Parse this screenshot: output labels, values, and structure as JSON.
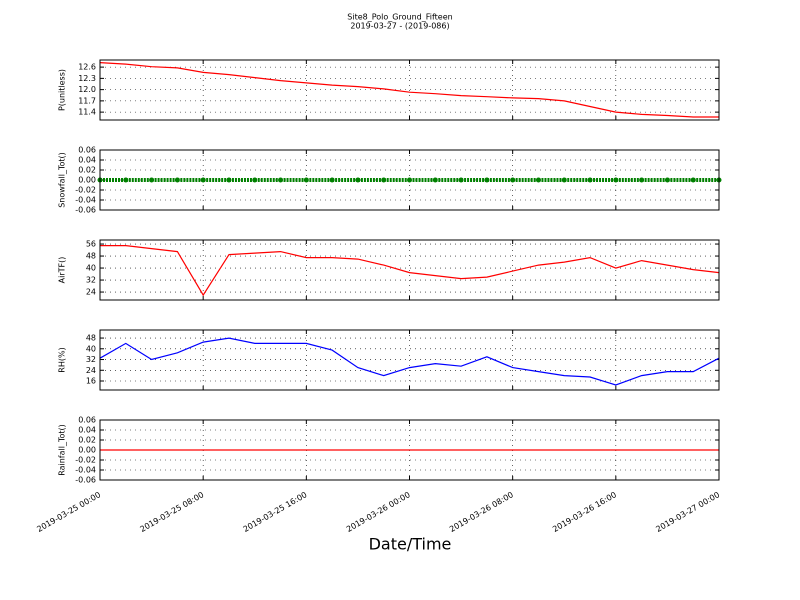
{
  "title": "Site8_Polo_Ground_Fifteen",
  "subtitle": "2019-03-27 - (2019-086)",
  "xlabel": "Date/Time",
  "xaxis": {
    "xlim": [
      "2019-03-25 00:00",
      "2019-03-27 00:00"
    ],
    "xticks": [
      "2019-03-25 00:00",
      "2019-03-25 08:00",
      "2019-03-25 16:00",
      "2019-03-26 00:00",
      "2019-03-26 08:00",
      "2019-03-26 16:00",
      "2019-03-27 00:00"
    ]
  },
  "chart_data": [
    {
      "type": "line",
      "ylabel": "P(unitless)",
      "ylim": [
        11.19,
        12.79
      ],
      "yticks": [
        11.4,
        11.7,
        {
          "value": 12,
          "label": "12.0"
        },
        12.3,
        12.6
      ],
      "grid": true,
      "x": [
        "2019-03-25 00:00",
        "2019-03-25 02:00",
        "2019-03-25 04:00",
        "2019-03-25 06:00",
        "2019-03-25 08:00",
        "2019-03-25 10:00",
        "2019-03-25 12:00",
        "2019-03-25 14:00",
        "2019-03-25 16:00",
        "2019-03-25 18:00",
        "2019-03-25 20:00",
        "2019-03-25 22:00",
        "2019-03-26 00:00",
        "2019-03-26 02:00",
        "2019-03-26 04:00",
        "2019-03-26 06:00",
        "2019-03-26 08:00",
        "2019-03-26 10:00",
        "2019-03-26 12:00",
        "2019-03-26 14:00",
        "2019-03-26 16:00",
        "2019-03-26 18:00",
        "2019-03-26 20:00",
        "2019-03-26 22:00",
        "2019-03-27 00:00"
      ],
      "series": [
        {
          "color": "#ff0000",
          "values": [
            12.72,
            12.68,
            12.61,
            12.58,
            12.46,
            12.4,
            12.32,
            12.24,
            12.18,
            12.12,
            12.08,
            12.02,
            11.93,
            11.89,
            11.84,
            11.81,
            11.78,
            11.76,
            11.7,
            11.55,
            11.4,
            11.34,
            11.31,
            11.27,
            11.27
          ]
        }
      ]
    },
    {
      "type": "scatter",
      "ylabel": "Snowfall_Tot()",
      "ylim": [
        -0.06,
        0.06
      ],
      "yticks": [
        -0.06,
        -0.04,
        -0.02,
        {
          "value": 0,
          "label": "0.00"
        },
        0.02,
        0.04,
        0.06
      ],
      "grid": true,
      "x": [
        "2019-03-25 00:00",
        "2019-03-25 02:00",
        "2019-03-25 04:00",
        "2019-03-25 06:00",
        "2019-03-25 08:00",
        "2019-03-25 10:00",
        "2019-03-25 12:00",
        "2019-03-25 14:00",
        "2019-03-25 16:00",
        "2019-03-25 18:00",
        "2019-03-25 20:00",
        "2019-03-25 22:00",
        "2019-03-26 00:00",
        "2019-03-26 02:00",
        "2019-03-26 04:00",
        "2019-03-26 06:00",
        "2019-03-26 08:00",
        "2019-03-26 10:00",
        "2019-03-26 12:00",
        "2019-03-26 14:00",
        "2019-03-26 16:00",
        "2019-03-26 18:00",
        "2019-03-26 20:00",
        "2019-03-26 22:00",
        "2019-03-27 00:00"
      ],
      "series": [
        {
          "color": "#008000",
          "values": [
            0,
            0,
            0,
            0,
            0,
            0,
            0,
            0,
            0,
            0,
            0,
            0,
            0,
            0,
            0,
            0,
            0,
            0,
            0,
            0,
            0,
            0,
            0,
            0,
            0
          ]
        }
      ]
    },
    {
      "type": "line",
      "ylabel": "AirTF()",
      "ylim": [
        18.7,
        58.7
      ],
      "yticks": [
        24,
        32,
        40,
        48,
        56
      ],
      "grid": true,
      "x": [
        "2019-03-25 00:00",
        "2019-03-25 02:00",
        "2019-03-25 04:00",
        "2019-03-25 06:00",
        "2019-03-25 08:00",
        "2019-03-25 10:00",
        "2019-03-25 12:00",
        "2019-03-25 14:00",
        "2019-03-25 16:00",
        "2019-03-25 18:00",
        "2019-03-25 20:00",
        "2019-03-25 22:00",
        "2019-03-26 00:00",
        "2019-03-26 02:00",
        "2019-03-26 04:00",
        "2019-03-26 06:00",
        "2019-03-26 08:00",
        "2019-03-26 10:00",
        "2019-03-26 12:00",
        "2019-03-26 14:00",
        "2019-03-26 16:00",
        "2019-03-26 18:00",
        "2019-03-26 20:00",
        "2019-03-26 22:00",
        "2019-03-27 00:00"
      ],
      "series": [
        {
          "color": "#ff0000",
          "values": [
            55,
            55,
            53,
            51,
            22,
            49,
            50,
            51,
            47,
            47,
            46,
            42,
            37,
            35,
            33,
            34,
            38,
            42,
            44,
            47,
            40,
            45,
            42,
            39,
            37
          ]
        }
      ]
    },
    {
      "type": "line",
      "ylabel": "RH(%)",
      "ylim": [
        9.3,
        54
      ],
      "yticks": [
        16,
        24,
        32,
        40,
        48
      ],
      "grid": true,
      "x": [
        "2019-03-25 00:00",
        "2019-03-25 02:00",
        "2019-03-25 04:00",
        "2019-03-25 06:00",
        "2019-03-25 08:00",
        "2019-03-25 10:00",
        "2019-03-25 12:00",
        "2019-03-25 14:00",
        "2019-03-25 16:00",
        "2019-03-25 18:00",
        "2019-03-25 20:00",
        "2019-03-25 22:00",
        "2019-03-26 00:00",
        "2019-03-26 02:00",
        "2019-03-26 04:00",
        "2019-03-26 06:00",
        "2019-03-26 08:00",
        "2019-03-26 10:00",
        "2019-03-26 12:00",
        "2019-03-26 14:00",
        "2019-03-26 16:00",
        "2019-03-26 18:00",
        "2019-03-26 20:00",
        "2019-03-26 22:00",
        "2019-03-27 00:00"
      ],
      "series": [
        {
          "color": "#0000ff",
          "values": [
            33,
            44,
            32,
            37,
            45,
            48,
            44,
            44,
            44,
            39,
            26,
            20,
            26,
            29,
            27,
            34,
            26,
            23,
            20,
            19,
            13,
            20,
            23,
            23,
            33
          ]
        }
      ]
    },
    {
      "type": "line",
      "ylabel": "Rainfall_Tot()",
      "ylim": [
        -0.06,
        0.06
      ],
      "yticks": [
        -0.06,
        -0.04,
        -0.02,
        {
          "value": 0,
          "label": "0.00"
        },
        0.02,
        0.04,
        0.06
      ],
      "grid": true,
      "x": [
        "2019-03-25 00:00",
        "2019-03-25 02:00",
        "2019-03-25 04:00",
        "2019-03-25 06:00",
        "2019-03-25 08:00",
        "2019-03-25 10:00",
        "2019-03-25 12:00",
        "2019-03-25 14:00",
        "2019-03-25 16:00",
        "2019-03-25 18:00",
        "2019-03-25 20:00",
        "2019-03-25 22:00",
        "2019-03-26 00:00",
        "2019-03-26 02:00",
        "2019-03-26 04:00",
        "2019-03-26 06:00",
        "2019-03-26 08:00",
        "2019-03-26 10:00",
        "2019-03-26 12:00",
        "2019-03-26 14:00",
        "2019-03-26 16:00",
        "2019-03-26 18:00",
        "2019-03-26 20:00",
        "2019-03-26 22:00",
        "2019-03-27 00:00"
      ],
      "series": [
        {
          "color": "#ff0000",
          "values": [
            0,
            0,
            0,
            0,
            0,
            0,
            0,
            0,
            0,
            0,
            0,
            0,
            0,
            0,
            0,
            0,
            0,
            0,
            0,
            0,
            0,
            0,
            0,
            0,
            0
          ]
        }
      ]
    }
  ]
}
